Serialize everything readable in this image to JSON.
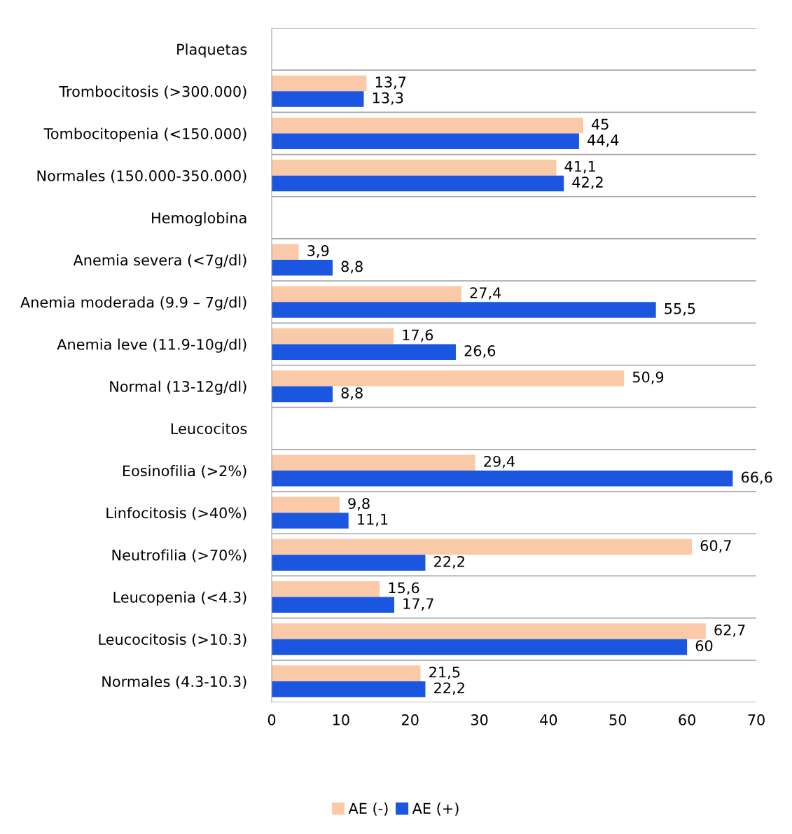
{
  "chart_data": {
    "type": "bar",
    "orientation": "horizontal",
    "categories": [
      "Plaquetas",
      "Trombocitosis (>300.000)",
      "Tombocitopenia (<150.000)",
      "Normales (150.000-350.000)",
      "Hemoglobina",
      "Anemia severa (<7g/dl)",
      "Anemia moderada (9.9 – 7g/dl)",
      "Anemia leve (11.9-10g/dl)",
      "Normal (13-12g/dl)",
      "Leucocitos",
      "Eosinofilia (>2%)",
      "Linfocitosis (>40%)",
      "Neutrofilia (>70%)",
      "Leucopenia (<4.3)",
      "Leucocitosis (>10.3)",
      "Normales (4.3-10.3)"
    ],
    "series": [
      {
        "name": "AE (-)",
        "color": "#f9c9a8",
        "values": [
          null,
          13.7,
          45,
          41.1,
          null,
          3.9,
          27.4,
          17.6,
          50.9,
          null,
          29.4,
          9.8,
          60.7,
          15.6,
          62.7,
          21.5
        ]
      },
      {
        "name": "AE (+)",
        "color": "#1a56e0",
        "values": [
          null,
          13.3,
          44.4,
          42.2,
          null,
          8.8,
          55.5,
          26.6,
          8.8,
          null,
          66.6,
          11.1,
          22.2,
          17.7,
          60,
          22.2
        ]
      }
    ],
    "value_labels": [
      [
        null,
        "13,7",
        "45",
        "41,1",
        null,
        "3,9",
        "27,4",
        "17,6",
        "50,9",
        null,
        "29,4",
        "9,8",
        "60,7",
        "15,6",
        "62,7",
        "21,5"
      ],
      [
        null,
        "13,3",
        "44,4",
        "42,2",
        null,
        "8,8",
        "55,5",
        "26,6",
        "8,8",
        null,
        "66,6",
        "11,1",
        "22,2",
        "17,7",
        "60",
        "22,2"
      ]
    ],
    "xlim": [
      0,
      70
    ],
    "xticks": [
      0,
      10,
      20,
      30,
      40,
      50,
      60,
      70
    ],
    "grid": "y",
    "legend": "bottom"
  }
}
